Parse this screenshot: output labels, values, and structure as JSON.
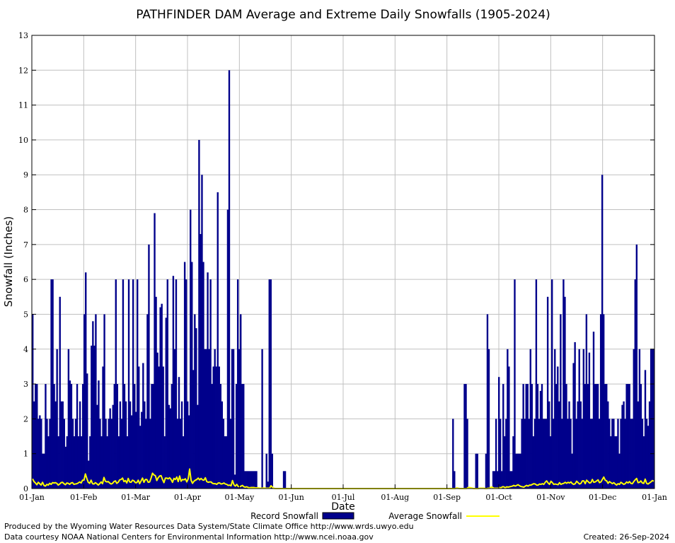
{
  "chart_data": {
    "type": "bar",
    "title": "PATHFINDER DAM Average and Extreme Daily Snowfalls (1905-2024)",
    "xlabel": "Date",
    "ylabel": "Snowfall (Inches)",
    "ylim": [
      0,
      13
    ],
    "y_ticks": [
      "0",
      "1",
      "2",
      "3",
      "4",
      "5",
      "6",
      "7",
      "8",
      "9",
      "10",
      "11",
      "12",
      "13"
    ],
    "x_ticks": [
      "01-Jan",
      "01-Feb",
      "01-Mar",
      "01-Apr",
      "01-May",
      "01-Jun",
      "01-Jul",
      "01-Aug",
      "01-Sep",
      "01-Oct",
      "01-Nov",
      "01-Dec",
      "01-Jan"
    ],
    "grid": true,
    "legend_position": "bottom",
    "series": [
      {
        "name": "Record Snowfall",
        "style": "bar",
        "color": "#00008b",
        "values": [
          5.0,
          2.5,
          3.0,
          3.0,
          2.0,
          2.1,
          2.0,
          1.0,
          1.0,
          3.0,
          2.0,
          1.5,
          2.0,
          6.0,
          6.0,
          3.0,
          2.5,
          4.0,
          1.5,
          5.5,
          2.5,
          2.5,
          2.0,
          1.2,
          1.5,
          4.0,
          3.1,
          3.0,
          2.0,
          1.5,
          2.0,
          3.0,
          1.5,
          2.5,
          1.5,
          3.0,
          5.0,
          6.2,
          3.3,
          0.8,
          1.5,
          4.1,
          4.8,
          4.1,
          5.0,
          2.4,
          3.1,
          2.0,
          1.5,
          3.5,
          5.0,
          2.0,
          1.5,
          2.0,
          2.3,
          2.0,
          2.4,
          3.0,
          6.0,
          3.0,
          1.5,
          2.5,
          2.0,
          6.0,
          3.0,
          2.5,
          1.5,
          6.0,
          2.5,
          2.1,
          6.0,
          3.0,
          2.2,
          6.0,
          3.5,
          1.8,
          2.2,
          3.6,
          2.5,
          2.0,
          5.0,
          7.0,
          2.0,
          3.0,
          3.0,
          7.9,
          5.5,
          3.9,
          3.5,
          5.2,
          5.3,
          3.5,
          1.5,
          4.9,
          6.0,
          2.4,
          2.3,
          3.0,
          6.1,
          4.0,
          6.0,
          2.0,
          3.2,
          2.0,
          2.5,
          1.5,
          6.5,
          6.0,
          2.5,
          2.1,
          8.0,
          6.5,
          3.4,
          5.0,
          4.6,
          2.4,
          10.0,
          7.3,
          9.0,
          6.5,
          4.0,
          4.0,
          6.2,
          4.0,
          6.0,
          3.0,
          3.5,
          4.0,
          3.5,
          8.5,
          3.5,
          3.0,
          2.5,
          2.0,
          1.5,
          1.5,
          8.0,
          12.0,
          2.0,
          4.0,
          4.0,
          0.4,
          3.0,
          6.0,
          4.0,
          5.0,
          3.0,
          3.0,
          0.5,
          0.5,
          0.5,
          0.5,
          0.5,
          0.5,
          0.5,
          0.5,
          0.5,
          0.0,
          0.0,
          0.0,
          4.0,
          0.0,
          0.0,
          1.0,
          0.2,
          6.0,
          6.0,
          1.0,
          0.0,
          0.0,
          0.0,
          0.0,
          0.0,
          0.0,
          0.0,
          0.5,
          0.5,
          0.0,
          0.0,
          0.0,
          0.0,
          0.0,
          0.0,
          0.0,
          0.0,
          0.0,
          0.0,
          0.0,
          0.0,
          0.0,
          0.0,
          0.0,
          0.0,
          0.0,
          0.0,
          0.0,
          0.0,
          0.0,
          0.0,
          0.0,
          0.0,
          0.0,
          0.0,
          0.0,
          0.0,
          0.0,
          0.0,
          0.0,
          0.0,
          0.0,
          0.0,
          0.0,
          0.0,
          0.0,
          0.0,
          0.0,
          0.0,
          0.0,
          0.0,
          0.0,
          0.0,
          0.0,
          0.0,
          0.0,
          0.0,
          0.0,
          0.0,
          0.0,
          0.0,
          0.0,
          0.0,
          0.0,
          0.0,
          0.0,
          0.0,
          0.0,
          0.0,
          0.0,
          0.0,
          0.0,
          0.0,
          0.0,
          0.0,
          0.0,
          0.0,
          0.0,
          0.0,
          0.0,
          0.0,
          0.0,
          0.0,
          0.0,
          0.0,
          0.0,
          0.0,
          0.0,
          0.0,
          0.0,
          0.0,
          0.0,
          0.0,
          0.0,
          0.0,
          0.0,
          0.0,
          0.0,
          0.0,
          0.0,
          0.0,
          0.0,
          0.0,
          0.0,
          0.0,
          0.0,
          0.0,
          0.0,
          0.0,
          0.0,
          0.0,
          0.0,
          0.0,
          0.0,
          0.0,
          0.0,
          0.0,
          0.0,
          0.0,
          0.0,
          0.0,
          0.0,
          0.0,
          0.0,
          0.0,
          2.0,
          0.5,
          0.0,
          0.0,
          0.0,
          0.0,
          0.0,
          0.0,
          3.0,
          3.0,
          2.0,
          0.0,
          0.0,
          0.0,
          0.0,
          0.0,
          1.0,
          1.0,
          0.0,
          0.0,
          0.0,
          0.0,
          0.0,
          1.0,
          5.0,
          4.0,
          0.0,
          0.0,
          0.5,
          0.5,
          2.0,
          0.5,
          3.2,
          2.0,
          0.5,
          3.0,
          1.5,
          2.0,
          4.0,
          3.5,
          0.5,
          0.5,
          1.5,
          6.0,
          1.0,
          1.0,
          1.0,
          1.0,
          2.0,
          3.0,
          2.0,
          3.0,
          3.0,
          2.0,
          4.0,
          3.0,
          1.5,
          2.0,
          6.0,
          3.0,
          2.0,
          2.8,
          3.0,
          2.0,
          2.0,
          2.0,
          5.5,
          2.5,
          1.5,
          6.0,
          2.0,
          4.0,
          3.0,
          3.5,
          2.5,
          5.0,
          2.0,
          6.0,
          5.5,
          3.0,
          2.0,
          2.5,
          2.0,
          1.0,
          3.6,
          4.2,
          2.0,
          2.5,
          4.0,
          2.5,
          2.0,
          4.0,
          3.0,
          5.0,
          3.0,
          3.9,
          2.0,
          2.0,
          4.5,
          3.0,
          3.0,
          3.0,
          2.0,
          5.0,
          9.0,
          5.0,
          3.0,
          3.0,
          2.5,
          2.0,
          1.5,
          2.0,
          2.0,
          1.5,
          1.5,
          2.0,
          1.0,
          2.0,
          2.4,
          2.5,
          2.0,
          3.0,
          3.0,
          3.0,
          2.0,
          2.0,
          4.0,
          6.0,
          7.0,
          2.5,
          4.0,
          3.0,
          2.0,
          1.5,
          3.4,
          2.0,
          1.8,
          2.5,
          4.0,
          4.0,
          4.0
        ]
      },
      {
        "name": "Average Snowfall",
        "style": "line",
        "color": "#ffff00",
        "values": [
          0.28,
          0.2,
          0.16,
          0.11,
          0.18,
          0.14,
          0.1,
          0.18,
          0.09,
          0.07,
          0.12,
          0.1,
          0.15,
          0.12,
          0.17,
          0.16,
          0.17,
          0.15,
          0.1,
          0.13,
          0.17,
          0.18,
          0.14,
          0.11,
          0.16,
          0.15,
          0.12,
          0.16,
          0.17,
          0.12,
          0.13,
          0.14,
          0.16,
          0.19,
          0.16,
          0.24,
          0.24,
          0.42,
          0.29,
          0.18,
          0.15,
          0.24,
          0.14,
          0.13,
          0.17,
          0.14,
          0.1,
          0.14,
          0.19,
          0.14,
          0.32,
          0.21,
          0.19,
          0.2,
          0.16,
          0.13,
          0.15,
          0.2,
          0.22,
          0.15,
          0.18,
          0.25,
          0.26,
          0.3,
          0.2,
          0.23,
          0.16,
          0.29,
          0.19,
          0.18,
          0.24,
          0.22,
          0.17,
          0.17,
          0.24,
          0.14,
          0.22,
          0.3,
          0.18,
          0.26,
          0.26,
          0.18,
          0.19,
          0.3,
          0.44,
          0.39,
          0.37,
          0.23,
          0.31,
          0.36,
          0.37,
          0.26,
          0.17,
          0.3,
          0.3,
          0.28,
          0.31,
          0.26,
          0.18,
          0.29,
          0.26,
          0.33,
          0.2,
          0.36,
          0.21,
          0.26,
          0.25,
          0.28,
          0.19,
          0.28,
          0.56,
          0.24,
          0.15,
          0.21,
          0.24,
          0.26,
          0.3,
          0.25,
          0.29,
          0.25,
          0.24,
          0.31,
          0.2,
          0.18,
          0.19,
          0.19,
          0.15,
          0.14,
          0.14,
          0.12,
          0.16,
          0.16,
          0.13,
          0.14,
          0.16,
          0.13,
          0.12,
          0.09,
          0.1,
          0.08,
          0.23,
          0.11,
          0.07,
          0.12,
          0.06,
          0.05,
          0.07,
          0.09,
          0.05,
          0.04,
          0.05,
          0.03,
          0.02,
          0.03,
          0.03,
          0.03,
          0.02,
          0.02,
          0.02,
          0.01,
          0.01,
          0.01,
          0.02,
          0.01,
          0.01,
          0.01,
          0.01,
          0.08,
          0.04,
          0.01,
          0.0,
          0.0,
          0.0,
          0.0,
          0.0,
          0.0,
          0.0,
          0.0,
          0.0,
          0.0,
          0.0,
          0.0,
          0.0,
          0.0,
          0.0,
          0.0,
          0.0,
          0.0,
          0.0,
          0.0,
          0.0,
          0.0,
          0.0,
          0.0,
          0.0,
          0.0,
          0.0,
          0.0,
          0.0,
          0.0,
          0.0,
          0.0,
          0.0,
          0.0,
          0.0,
          0.0,
          0.0,
          0.0,
          0.0,
          0.0,
          0.0,
          0.0,
          0.0,
          0.0,
          0.0,
          0.0,
          0.0,
          0.0,
          0.0,
          0.0,
          0.0,
          0.0,
          0.0,
          0.0,
          0.0,
          0.0,
          0.0,
          0.0,
          0.0,
          0.0,
          0.0,
          0.0,
          0.0,
          0.0,
          0.0,
          0.0,
          0.0,
          0.0,
          0.0,
          0.0,
          0.0,
          0.0,
          0.0,
          0.0,
          0.0,
          0.0,
          0.0,
          0.0,
          0.0,
          0.0,
          0.0,
          0.0,
          0.0,
          0.0,
          0.0,
          0.0,
          0.0,
          0.0,
          0.0,
          0.0,
          0.0,
          0.0,
          0.0,
          0.0,
          0.0,
          0.0,
          0.0,
          0.0,
          0.0,
          0.0,
          0.0,
          0.0,
          0.0,
          0.0,
          0.0,
          0.0,
          0.0,
          0.0,
          0.0,
          0.0,
          0.0,
          0.0,
          0.0,
          0.0,
          0.0,
          0.0,
          0.0,
          0.0,
          0.0,
          0.0,
          0.0,
          0.0,
          0.0,
          0.0,
          0.0,
          0.0,
          0.0,
          0.02,
          0.01,
          0.0,
          0.0,
          0.0,
          0.0,
          0.0,
          0.0,
          0.03,
          0.03,
          0.02,
          0.01,
          0.0,
          0.0,
          0.0,
          0.0,
          0.01,
          0.01,
          0.01,
          0.01,
          0.0,
          0.0,
          0.01,
          0.01,
          0.04,
          0.04,
          0.01,
          0.01,
          0.01,
          0.01,
          0.03,
          0.02,
          0.05,
          0.05,
          0.02,
          0.05,
          0.04,
          0.05,
          0.06,
          0.07,
          0.09,
          0.07,
          0.09,
          0.11,
          0.08,
          0.06,
          0.05,
          0.04,
          0.07,
          0.09,
          0.07,
          0.1,
          0.1,
          0.12,
          0.14,
          0.13,
          0.1,
          0.1,
          0.13,
          0.12,
          0.14,
          0.12,
          0.18,
          0.22,
          0.16,
          0.12,
          0.21,
          0.17,
          0.12,
          0.13,
          0.12,
          0.11,
          0.17,
          0.12,
          0.14,
          0.15,
          0.18,
          0.15,
          0.18,
          0.16,
          0.19,
          0.14,
          0.12,
          0.14,
          0.21,
          0.17,
          0.13,
          0.15,
          0.22,
          0.22,
          0.14,
          0.24,
          0.2,
          0.16,
          0.17,
          0.26,
          0.18,
          0.19,
          0.22,
          0.25,
          0.17,
          0.19,
          0.26,
          0.33,
          0.24,
          0.22,
          0.15,
          0.2,
          0.17,
          0.14,
          0.17,
          0.13,
          0.1,
          0.14,
          0.12,
          0.18,
          0.15,
          0.12,
          0.14,
          0.19,
          0.16,
          0.2,
          0.15,
          0.14,
          0.2,
          0.25,
          0.29,
          0.17,
          0.18,
          0.22,
          0.16,
          0.15,
          0.27,
          0.15,
          0.13,
          0.16,
          0.19,
          0.23,
          0.21
        ]
      }
    ]
  },
  "footer": {
    "credit_line1": "Produced by the Wyoming Water Resources Data System/State Climate Office http://www.wrds.uwyo.edu",
    "credit_line2": "Data courtesy NOAA National Centers for Environmental Information http://www.ncei.noaa.gov",
    "created": "Created:  26-Sep-2024"
  }
}
